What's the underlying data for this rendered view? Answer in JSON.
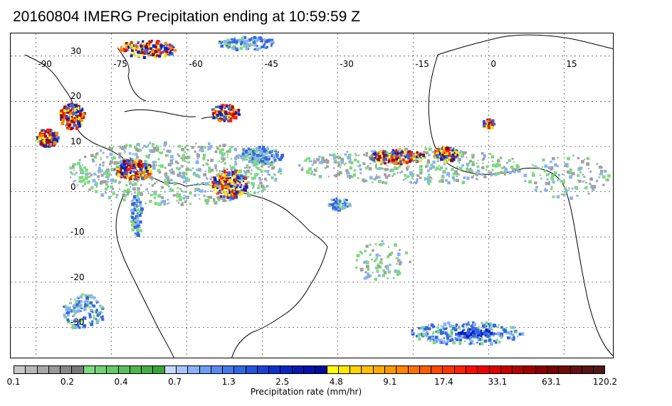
{
  "title": "20160804 IMERG Precipitation ending at 10:59:59 Z",
  "map": {
    "lon_ticks": [
      "-90",
      "-75",
      "-60",
      "-45",
      "-30",
      "-15",
      "0",
      "15"
    ],
    "lat_ticks": [
      "30",
      "20",
      "10",
      "0",
      "-10",
      "-20",
      "-30"
    ],
    "lon_range": [
      -95,
      25
    ],
    "lat_range": [
      -37,
      35
    ],
    "gridlines": true
  },
  "colorbar": {
    "label": "Precipitation rate (mm/hr)",
    "tick_labels": [
      "0.1",
      "0.2",
      "0.4",
      "0.7",
      "1.3",
      "2.5",
      "4.8",
      "9.1",
      "17.4",
      "33.1",
      "63.1",
      "120.2"
    ],
    "colors": [
      "#c8c8c8",
      "#b8b8b8",
      "#a8a8a8",
      "#989898",
      "#888888",
      "#787878",
      "#7fd97f",
      "#72d072",
      "#66c866",
      "#5abf5a",
      "#4fb64f",
      "#45ad45",
      "#3aa33a",
      "#c8d8ff",
      "#a8c4ff",
      "#8ab0f8",
      "#6e9cf2",
      "#5a8aee",
      "#4678ea",
      "#3466e4",
      "#2654dc",
      "#1a40d4",
      "#1030cc",
      "#0a24c0",
      "#0618b4",
      "#0410a8",
      "#000c9c",
      "#ffff00",
      "#ffe800",
      "#ffd400",
      "#ffc000",
      "#ffac00",
      "#ff9800",
      "#ff8400",
      "#ff7000",
      "#ff5c00",
      "#ff4800",
      "#ff3400",
      "#ff2000",
      "#ff0c00",
      "#f00000",
      "#dc0000",
      "#c80000",
      "#b40000",
      "#a00000",
      "#8c0000",
      "#780000",
      "#6e0a0a",
      "#641010",
      "#5a1414",
      "#501818"
    ]
  },
  "precip_colors": {
    "gray": "#a0a0a0",
    "green": "#7fd97f",
    "lightblue": "#8ab0f8",
    "blue": "#3466e4",
    "darkblue": "#0a24c0",
    "yellow": "#ffe800",
    "orange": "#ff8400",
    "red": "#ff2000",
    "darkred": "#a00000"
  }
}
